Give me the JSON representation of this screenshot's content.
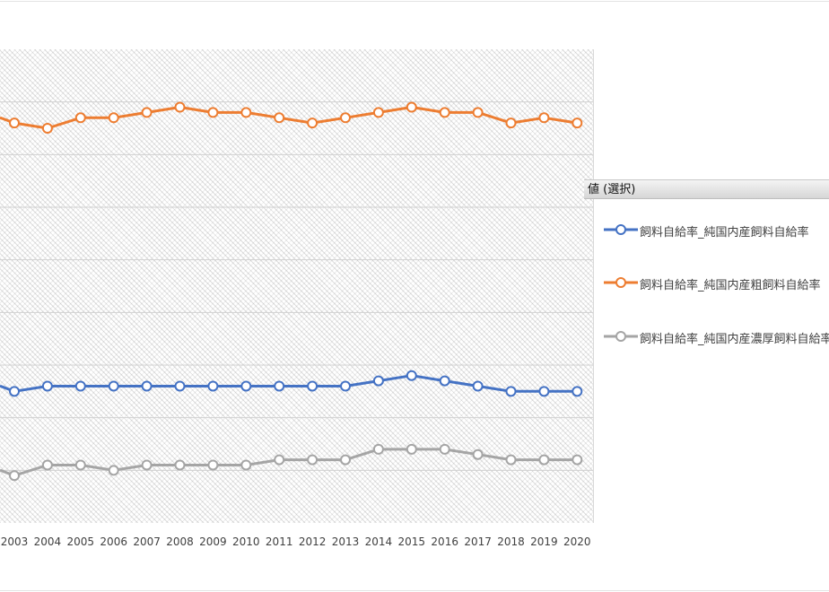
{
  "chart_data": {
    "type": "line",
    "categories": [
      "2003",
      "2004",
      "2005",
      "2006",
      "2007",
      "2008",
      "2009",
      "2010",
      "2011",
      "2012",
      "2013",
      "2014",
      "2015",
      "2016",
      "2017",
      "2018",
      "2019",
      "2020"
    ],
    "series": [
      {
        "name": "飼料自給率_純国内産飼料自給率",
        "color": "#4472c4",
        "values": [
          25,
          26,
          26,
          26,
          26,
          26,
          26,
          26,
          26,
          26,
          26,
          27,
          28,
          27,
          26,
          25,
          25,
          25
        ]
      },
      {
        "name": "飼料自給率_純国内産粗飼料自給率",
        "color": "#ed7d31",
        "values": [
          76,
          75,
          77,
          77,
          78,
          79,
          78,
          78,
          77,
          76,
          77,
          78,
          79,
          78,
          78,
          76,
          77,
          76
        ]
      },
      {
        "name": "飼料自給率_純国内産濃厚飼料自給率",
        "color": "#a5a5a5",
        "values": [
          9,
          11,
          11,
          10,
          11,
          11,
          11,
          11,
          12,
          12,
          12,
          14,
          14,
          14,
          13,
          12,
          12,
          12
        ]
      }
    ],
    "x_range_note": "",
    "grid": true,
    "legend_title": "値 (選択)",
    "legend_position": "right"
  }
}
